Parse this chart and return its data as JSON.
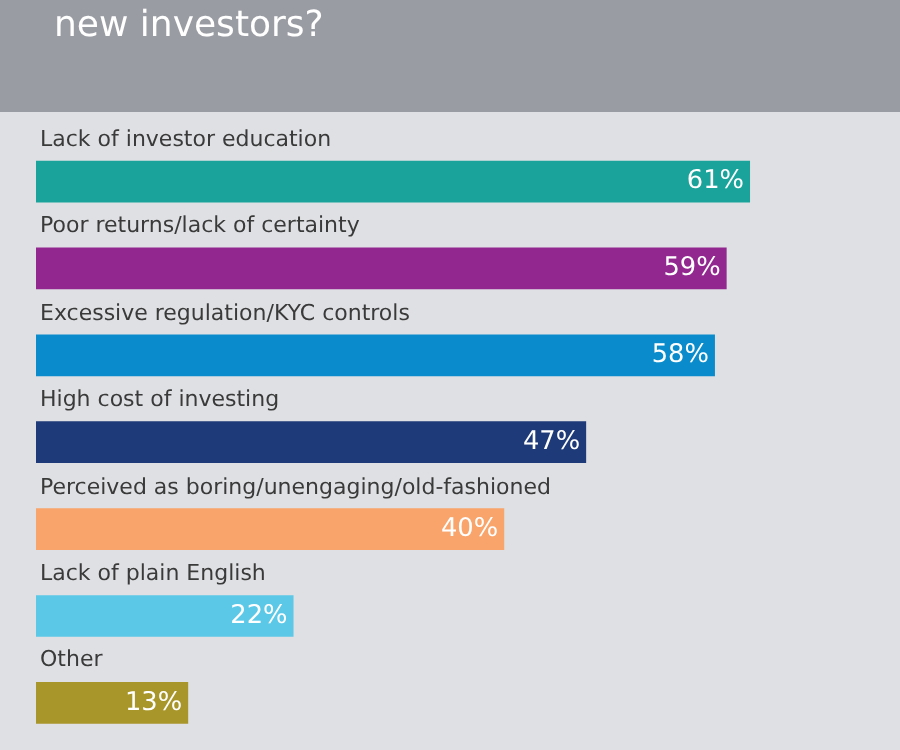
{
  "chart_data": {
    "type": "bar",
    "orientation": "horizontal",
    "title": "new investors?",
    "categories": [
      "Lack of investor education",
      "Poor returns/lack of certainty",
      "Excessive regulation/KYC controls",
      "High cost of investing",
      "Perceived as boring/unengaging/old-fashioned",
      "Lack of plain English",
      "Other"
    ],
    "values": [
      61,
      59,
      58,
      47,
      40,
      22,
      13
    ],
    "value_labels": [
      "61%",
      "59%",
      "58%",
      "47%",
      "40%",
      "22%",
      "13%"
    ],
    "colors": [
      "#1aa39a",
      "#92278f",
      "#0a8ccc",
      "#1f3a78",
      "#f9a46b",
      "#5bc8e8",
      "#a8962a"
    ]
  }
}
